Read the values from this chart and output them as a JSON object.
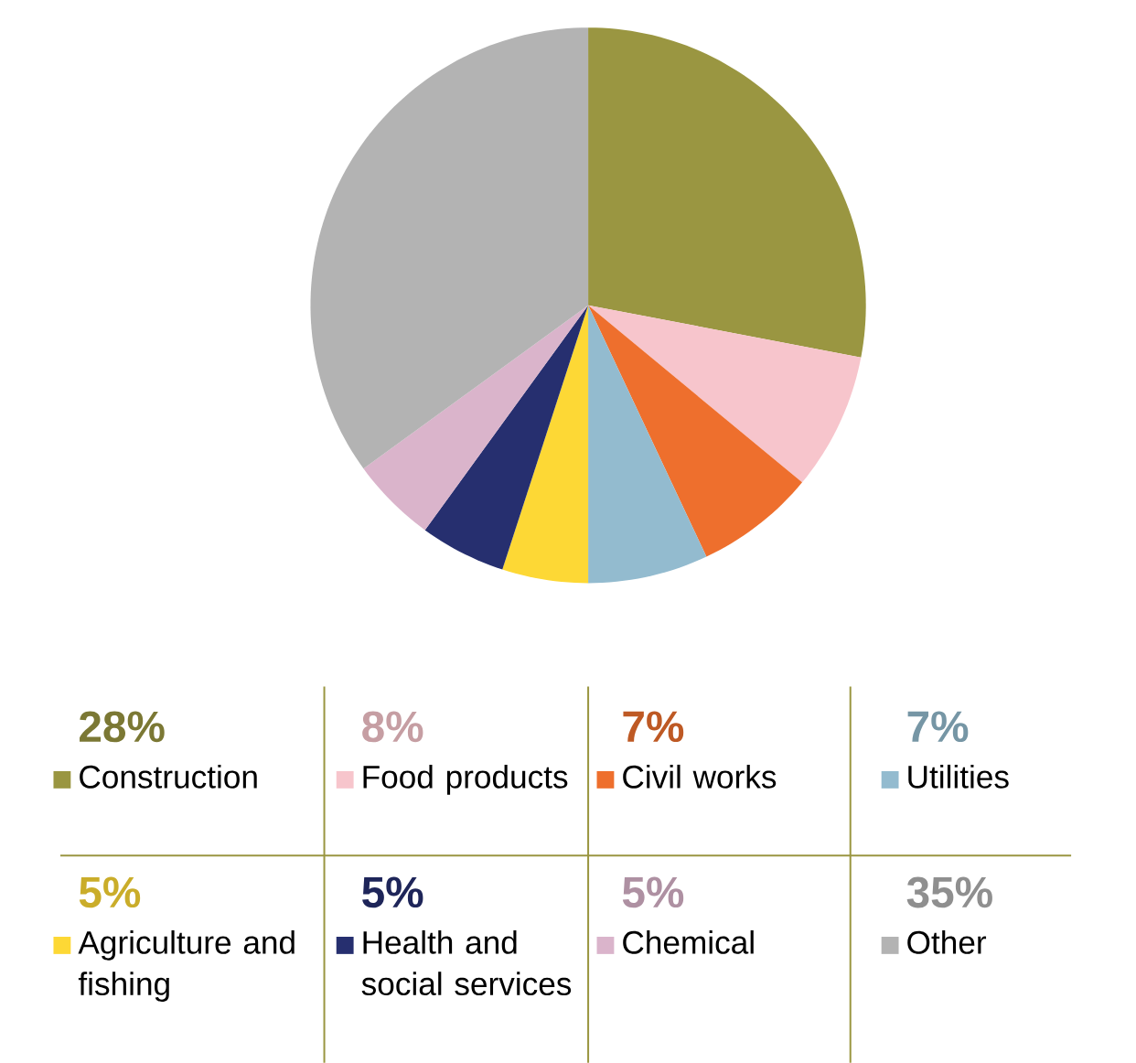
{
  "chart_data": {
    "type": "pie",
    "categories": [
      "Construction",
      "Food products",
      "Civil works",
      "Utilities",
      "Agriculture and fishing",
      "Health and social services",
      "Chemical",
      "Other"
    ],
    "values": [
      28,
      8,
      7,
      7,
      5,
      5,
      5,
      35
    ],
    "value_labels": [
      "28%",
      "8%",
      "7%",
      "7%",
      "5%",
      "5%",
      "5%",
      "35%"
    ],
    "colors": [
      "#9a9641",
      "#f7c5cc",
      "#ee6f2d",
      "#93bbcf",
      "#fdd835",
      "#262f6f",
      "#dab4cb",
      "#b3b3b3"
    ],
    "legend": "bottom"
  }
}
